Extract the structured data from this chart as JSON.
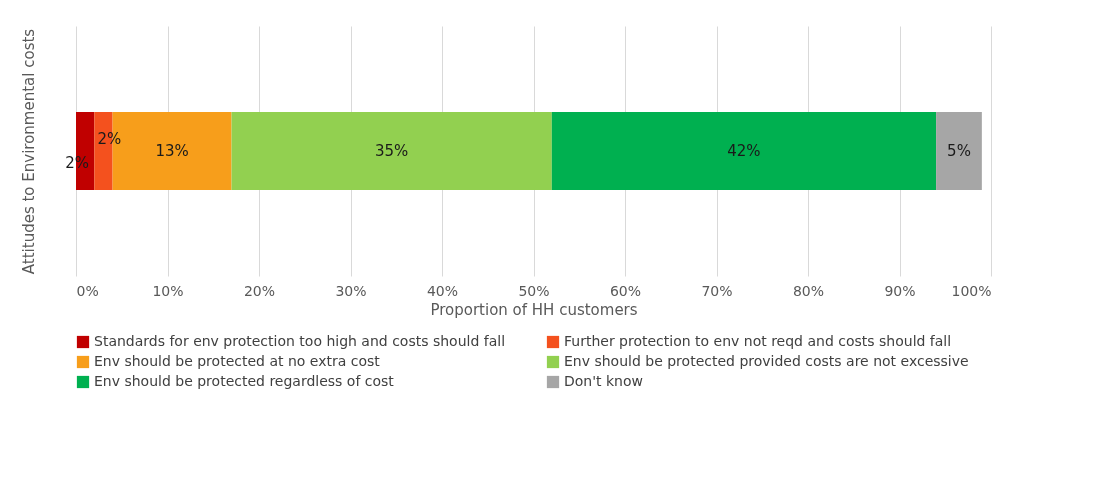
{
  "chart_data": {
    "type": "bar",
    "orientation": "horizontal",
    "stacked": true,
    "categories": [
      null
    ],
    "ylabel": "Attitudes to Environmental  costs",
    "xlabel": "Proportion of HH customers",
    "xlim": [
      0,
      100
    ],
    "xticks": [
      {
        "value": 0,
        "label": "0%"
      },
      {
        "value": 10,
        "label": "10%"
      },
      {
        "value": 20,
        "label": "20%"
      },
      {
        "value": 30,
        "label": "30%"
      },
      {
        "value": 40,
        "label": "40%"
      },
      {
        "value": 50,
        "label": "50%"
      },
      {
        "value": 60,
        "label": "60%"
      },
      {
        "value": 70,
        "label": "70%"
      },
      {
        "value": 80,
        "label": "80%"
      },
      {
        "value": 90,
        "label": "90%"
      },
      {
        "value": 100,
        "label": "100%"
      }
    ],
    "grid": "x",
    "legend": "bottom",
    "tick_labels": "x",
    "series": [
      {
        "name": "Standards for env protection too high and costs should fall",
        "color": "#c00000",
        "values": [
          2
        ],
        "value_labels": [
          "2%"
        ]
      },
      {
        "name": "Further protection to env not reqd and costs should fall",
        "color": "#f4511e",
        "values": [
          2
        ],
        "value_labels": [
          "2%"
        ]
      },
      {
        "name": "Env should be protected at no extra cost",
        "color": "#f79e1b",
        "values": [
          13
        ],
        "value_labels": [
          "13%"
        ]
      },
      {
        "name": "Env should be protected provided costs are not excessive",
        "color": "#92d050",
        "values": [
          35
        ],
        "value_labels": [
          "35%"
        ]
      },
      {
        "name": "Env should be protected regardless of cost",
        "color": "#00b050",
        "values": [
          42
        ],
        "value_labels": [
          "42%"
        ]
      },
      {
        "name": "Don't know",
        "color": "#a6a6a6",
        "values": [
          5
        ],
        "value_labels": [
          "5%"
        ]
      }
    ]
  }
}
